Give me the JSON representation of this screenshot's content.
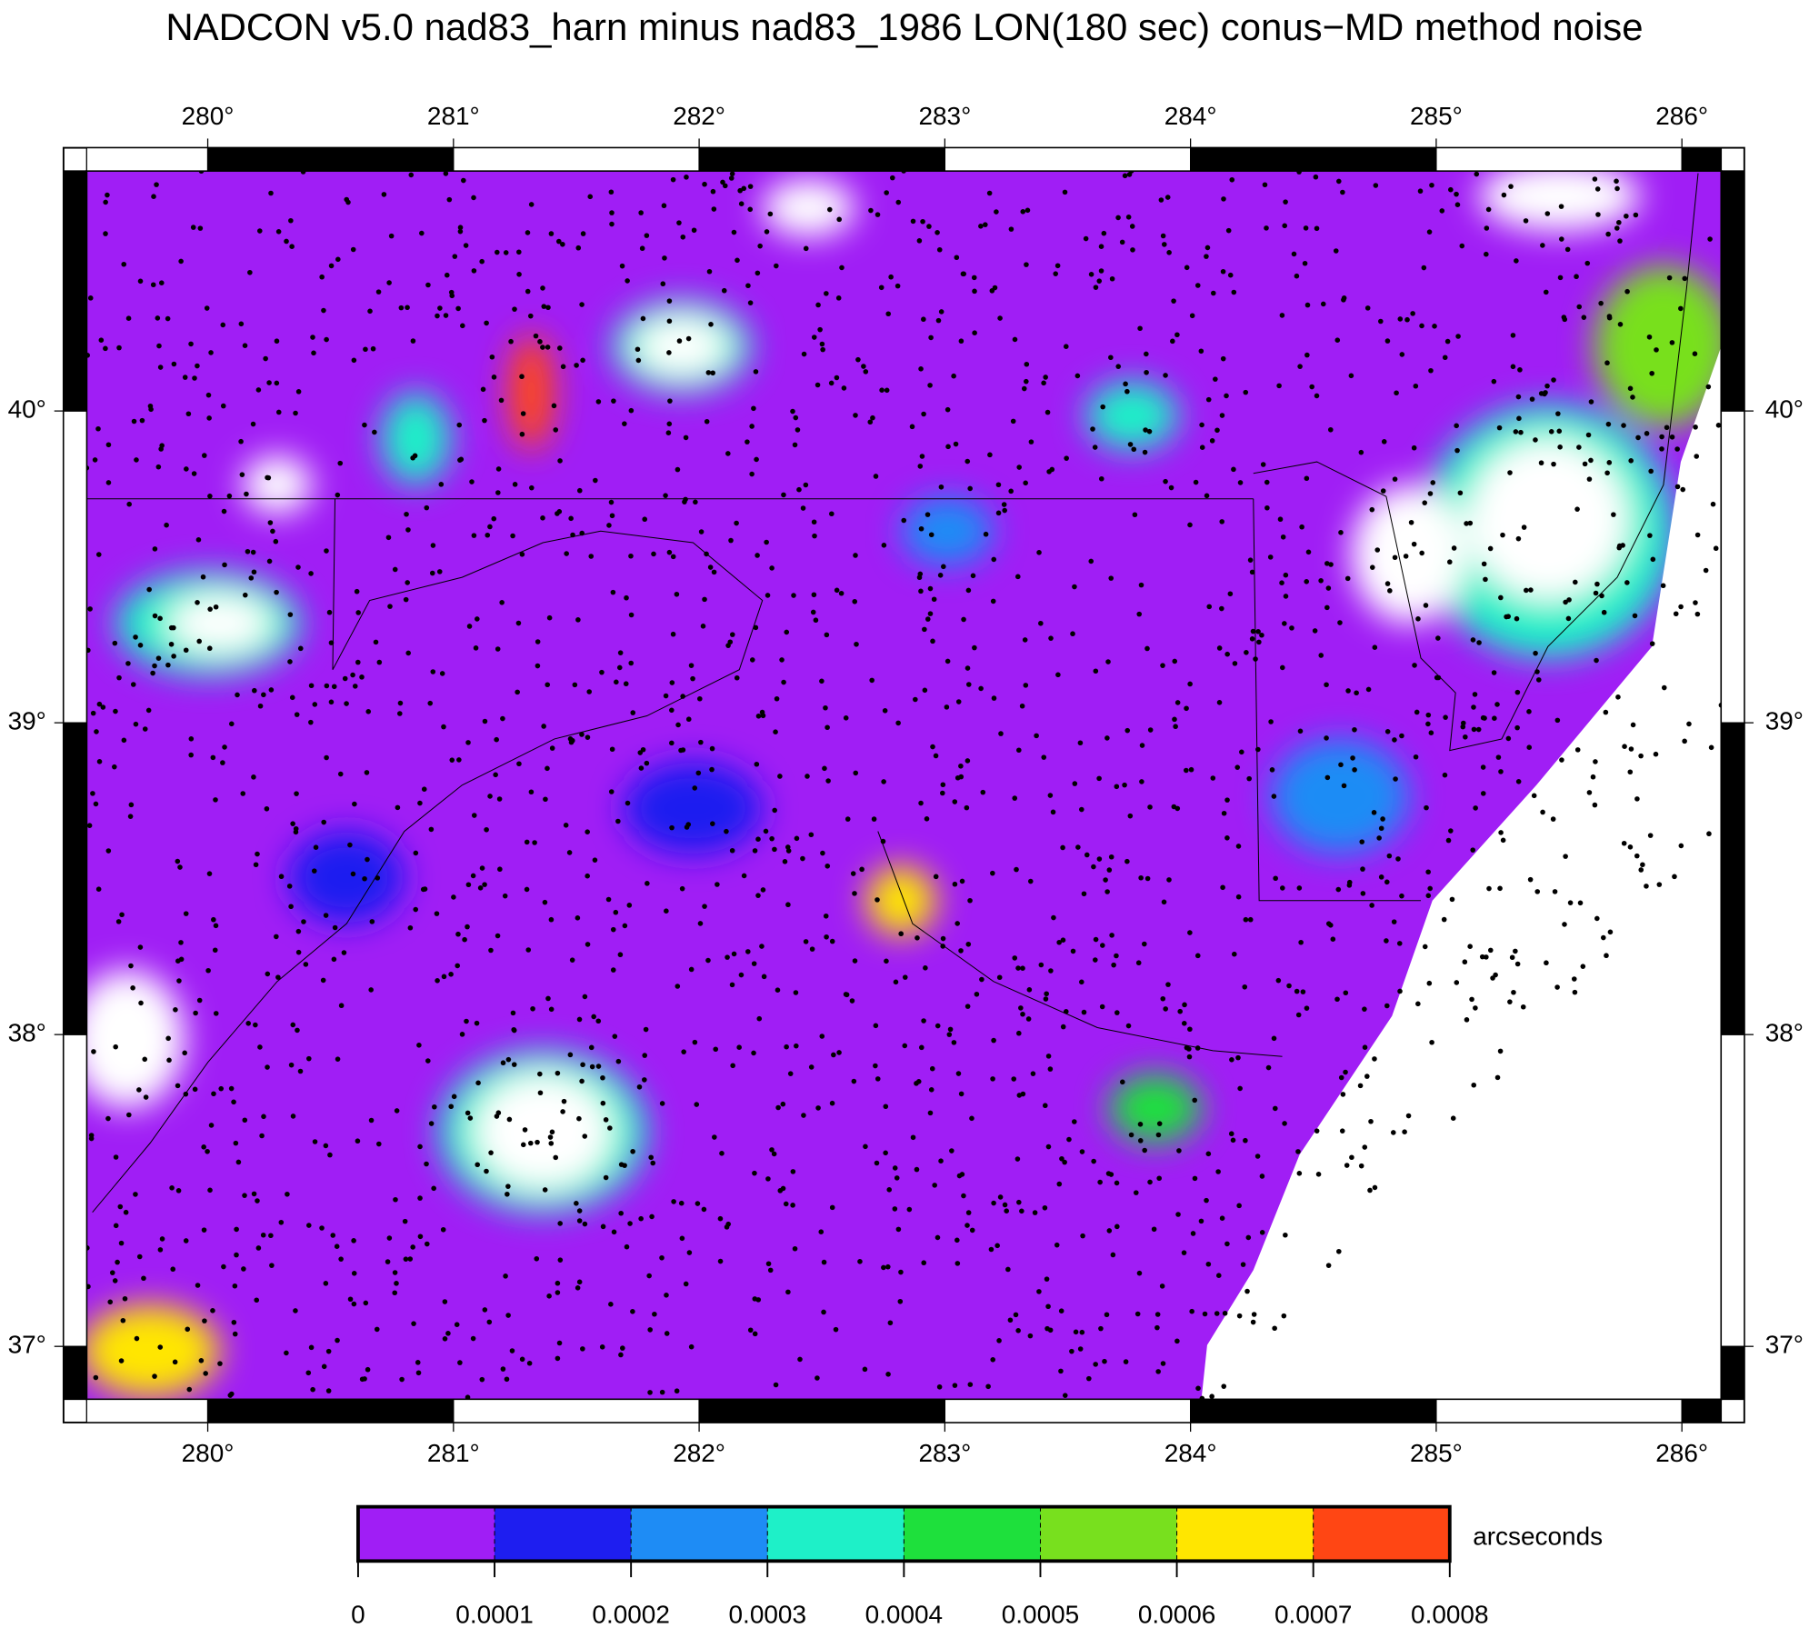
{
  "title": "NADCON v5.0 nad83_harn minus nad83_1986 LON(180 sec) conus−MD method noise",
  "map": {
    "lonlim": [
      279.507,
      286.16
    ],
    "latlim": [
      36.83,
      40.77
    ],
    "lon_ticks": [
      {
        "value": 280,
        "label": "280°"
      },
      {
        "value": 281,
        "label": "281°"
      },
      {
        "value": 282,
        "label": "282°"
      },
      {
        "value": 283,
        "label": "283°"
      },
      {
        "value": 284,
        "label": "284°"
      },
      {
        "value": 285,
        "label": "285°"
      },
      {
        "value": 286,
        "label": "286°"
      }
    ],
    "lat_ticks": [
      {
        "value": 37,
        "label": "37°"
      },
      {
        "value": 38,
        "label": "38°"
      },
      {
        "value": 39,
        "label": "39°"
      },
      {
        "value": 40,
        "label": "40°"
      }
    ]
  },
  "colorbar": {
    "label": "arcseconds",
    "ticks": [
      0,
      0.0001,
      0.0002,
      0.0003,
      0.0004,
      0.0005,
      0.0006,
      0.0007,
      0.0008
    ],
    "colors": [
      "#a01ef5",
      "#1e1ef0",
      "#1e8cf5",
      "#1ef0c8",
      "#1ee03c",
      "#78e01e",
      "#ffe600",
      "#ff4614"
    ]
  }
}
